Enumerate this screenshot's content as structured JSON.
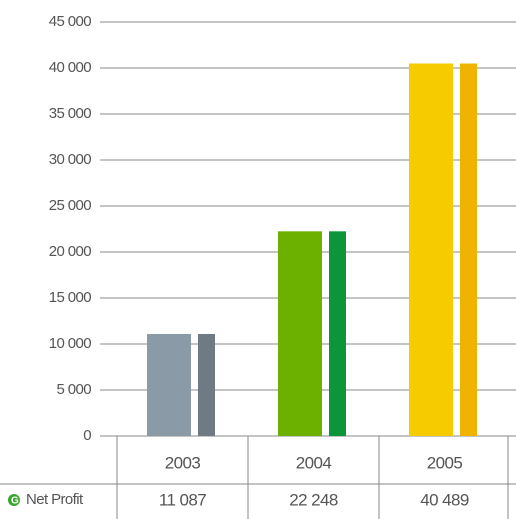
{
  "chart_data": {
    "type": "bar",
    "categories": [
      "2003",
      "2004",
      "2005"
    ],
    "series": [
      {
        "name": "Net Profit",
        "values": [
          11087,
          22248,
          40489
        ],
        "value_labels": [
          "11 087",
          "22 248",
          "40 489"
        ],
        "colors": [
          "#8a9aa6",
          "#6cb000",
          "#f6cb00"
        ],
        "shade_colors": [
          "#6f7a85",
          "#0b963a",
          "#f0b400"
        ]
      }
    ],
    "ylim": [
      0,
      45000
    ],
    "yticks": [
      0,
      {
        "value": 5000,
        "label": "5 000"
      },
      {
        "value": 10000,
        "label": "10 000"
      },
      {
        "value": 15000,
        "label": "15 000"
      },
      {
        "value": 20000,
        "label": "20 000"
      },
      {
        "value": 25000,
        "label": "25 000"
      },
      {
        "value": 30000,
        "label": "30 000"
      },
      {
        "value": 35000,
        "label": "35 000"
      },
      {
        "value": 40000,
        "label": "40 000"
      },
      {
        "value": 45000,
        "label": "45 000"
      }
    ],
    "grid": true
  }
}
